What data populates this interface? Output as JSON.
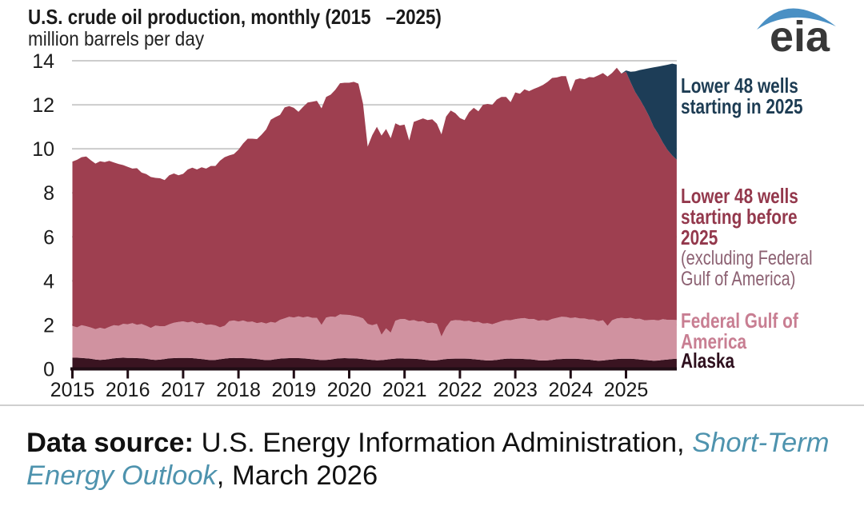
{
  "title": "U.S. crude oil production, monthly (2015   –2025)",
  "subtitle": "million barrels per day",
  "logo": {
    "text": "eia",
    "swoosh_color": "#4a90c4",
    "text_color": "#383838"
  },
  "annotations": {
    "lower48_new": {
      "line1": "Lower 48 wells",
      "line2": "starting in 2025",
      "color": "#1d3c53"
    },
    "lower48_before": {
      "line1": "Lower 48 wells",
      "line2": "starting before",
      "line3": "2025",
      "sub1": "(excluding Federal",
      "sub2": "Gulf of America)",
      "color": "#93384c",
      "sub_color": "#8c6172"
    },
    "gulf": {
      "line1": "Federal Gulf of",
      "line2": "America",
      "color": "#c87e92"
    },
    "alaska": {
      "label": "Alaska",
      "color": "#2e0f1d"
    }
  },
  "footer": {
    "line1": {
      "label": "Data source: ",
      "text": "U.S. Energy Information Administration, ",
      "link": "Short-Term"
    },
    "line2": {
      "link": "Energy Outlook",
      "suffix": ", March 2026"
    },
    "link_color": "#4e93ae"
  },
  "chart_data": {
    "type": "area-stacked",
    "title": "U.S. crude oil production, monthly (2015–2025)",
    "ylabel": "million barrels per day",
    "x_start": "2015-01",
    "x_end": "2025-12",
    "points_per_year": 12,
    "x_tick_years": [
      2015,
      2016,
      2017,
      2018,
      2019,
      2020,
      2021,
      2022,
      2023,
      2024,
      2025
    ],
    "ylim": [
      0,
      14
    ],
    "yticks": [
      0,
      2,
      4,
      6,
      8,
      10,
      12,
      14
    ],
    "grid_color": "#cccccc",
    "axis_color": "#200d15",
    "series": [
      {
        "name": "Alaska",
        "color": "#3a1421",
        "values": [
          0.51,
          0.51,
          0.5,
          0.48,
          0.46,
          0.43,
          0.41,
          0.42,
          0.45,
          0.48,
          0.5,
          0.51,
          0.5,
          0.5,
          0.49,
          0.48,
          0.46,
          0.43,
          0.41,
          0.42,
          0.45,
          0.48,
          0.49,
          0.5,
          0.5,
          0.5,
          0.49,
          0.47,
          0.45,
          0.42,
          0.4,
          0.41,
          0.44,
          0.47,
          0.49,
          0.5,
          0.49,
          0.49,
          0.48,
          0.47,
          0.45,
          0.42,
          0.4,
          0.41,
          0.44,
          0.47,
          0.48,
          0.49,
          0.49,
          0.49,
          0.48,
          0.46,
          0.44,
          0.42,
          0.4,
          0.41,
          0.43,
          0.46,
          0.48,
          0.49,
          0.48,
          0.48,
          0.47,
          0.45,
          0.43,
          0.41,
          0.39,
          0.4,
          0.42,
          0.45,
          0.47,
          0.48,
          0.47,
          0.47,
          0.46,
          0.45,
          0.43,
          0.4,
          0.38,
          0.39,
          0.42,
          0.45,
          0.46,
          0.47,
          0.47,
          0.47,
          0.46,
          0.44,
          0.42,
          0.4,
          0.38,
          0.39,
          0.41,
          0.44,
          0.46,
          0.47,
          0.46,
          0.46,
          0.45,
          0.44,
          0.42,
          0.39,
          0.38,
          0.39,
          0.41,
          0.44,
          0.45,
          0.46,
          0.46,
          0.46,
          0.45,
          0.43,
          0.42,
          0.39,
          0.37,
          0.38,
          0.41,
          0.43,
          0.45,
          0.46,
          0.46,
          0.46,
          0.45,
          0.43,
          0.41,
          0.39,
          0.37,
          0.38,
          0.41,
          0.43,
          0.45,
          0.46
        ]
      },
      {
        "name": "Federal Gulf of America",
        "color": "#d092a0",
        "values": [
          1.44,
          1.38,
          1.49,
          1.46,
          1.42,
          1.38,
          1.46,
          1.4,
          1.46,
          1.51,
          1.46,
          1.54,
          1.53,
          1.58,
          1.52,
          1.56,
          1.5,
          1.43,
          1.56,
          1.52,
          1.49,
          1.55,
          1.61,
          1.63,
          1.66,
          1.61,
          1.66,
          1.6,
          1.65,
          1.58,
          1.62,
          1.57,
          1.45,
          1.49,
          1.68,
          1.7,
          1.66,
          1.71,
          1.65,
          1.68,
          1.63,
          1.7,
          1.66,
          1.72,
          1.66,
          1.76,
          1.82,
          1.88,
          1.84,
          1.9,
          1.86,
          1.92,
          1.88,
          1.9,
          1.6,
          1.92,
          1.95,
          1.9,
          2.0,
          1.97,
          1.97,
          1.93,
          1.9,
          1.85,
          1.62,
          1.58,
          1.66,
          1.15,
          1.42,
          1.2,
          1.72,
          1.78,
          1.8,
          1.72,
          1.76,
          1.7,
          1.74,
          1.68,
          1.72,
          1.65,
          1.05,
          1.45,
          1.72,
          1.75,
          1.74,
          1.7,
          1.73,
          1.68,
          1.72,
          1.66,
          1.7,
          1.64,
          1.69,
          1.73,
          1.76,
          1.74,
          1.8,
          1.83,
          1.86,
          1.82,
          1.85,
          1.8,
          1.84,
          1.8,
          1.86,
          1.88,
          1.92,
          1.9,
          1.85,
          1.88,
          1.84,
          1.86,
          1.82,
          1.85,
          1.8,
          1.83,
          1.55,
          1.78,
          1.84,
          1.86,
          1.84,
          1.86,
          1.82,
          1.85,
          1.8,
          1.83,
          1.86,
          1.82,
          1.85,
          1.8,
          1.78,
          1.76
        ]
      },
      {
        "name": "Lower 48 wells starting before 2025 (excluding Federal Gulf of America)",
        "color": "#9e3f50",
        "derived": "total minus Alaska, Federal Gulf of America, and Lower 48 wells starting in 2025"
      },
      {
        "name": "Lower 48 wells starting in 2025",
        "color": "#1d3d57",
        "values": [
          0,
          0,
          0,
          0,
          0,
          0,
          0,
          0,
          0,
          0,
          0,
          0,
          0,
          0,
          0,
          0,
          0,
          0,
          0,
          0,
          0,
          0,
          0,
          0,
          0,
          0,
          0,
          0,
          0,
          0,
          0,
          0,
          0,
          0,
          0,
          0,
          0,
          0,
          0,
          0,
          0,
          0,
          0,
          0,
          0,
          0,
          0,
          0,
          0,
          0,
          0,
          0,
          0,
          0,
          0,
          0,
          0,
          0,
          0,
          0,
          0,
          0,
          0,
          0,
          0,
          0,
          0,
          0,
          0,
          0,
          0,
          0,
          0,
          0,
          0,
          0,
          0,
          0,
          0,
          0,
          0,
          0,
          0,
          0,
          0,
          0,
          0,
          0,
          0,
          0,
          0,
          0,
          0,
          0,
          0,
          0,
          0,
          0,
          0,
          0,
          0,
          0,
          0,
          0,
          0,
          0,
          0,
          0,
          0,
          0,
          0,
          0,
          0,
          0,
          0,
          0,
          0,
          0,
          0,
          0,
          0.06,
          0.48,
          0.94,
          1.33,
          1.74,
          2.18,
          2.7,
          3.07,
          3.5,
          3.87,
          4.17,
          4.33
        ]
      }
    ],
    "total": [
      9.42,
      9.5,
      9.62,
      9.65,
      9.48,
      9.33,
      9.43,
      9.4,
      9.45,
      9.38,
      9.31,
      9.26,
      9.18,
      9.1,
      9.12,
      8.92,
      8.85,
      8.72,
      8.68,
      8.66,
      8.58,
      8.8,
      8.88,
      8.8,
      8.86,
      9.06,
      9.14,
      9.06,
      9.16,
      9.1,
      9.22,
      9.22,
      9.46,
      9.62,
      9.7,
      9.76,
      9.96,
      10.24,
      10.46,
      10.46,
      10.44,
      10.64,
      10.88,
      11.32,
      11.44,
      11.54,
      11.88,
      11.94,
      11.86,
      11.68,
      11.9,
      12.1,
      12.14,
      12.18,
      11.84,
      12.36,
      12.46,
      12.68,
      12.98,
      13.0,
      13.0,
      13.04,
      12.96,
      12.05,
      10.1,
      10.62,
      11.0,
      10.6,
      10.9,
      10.48,
      11.16,
      11.06,
      11.1,
      10.38,
      11.22,
      11.3,
      11.38,
      11.3,
      11.34,
      11.14,
      10.66,
      11.46,
      11.74,
      11.62,
      11.4,
      11.3,
      11.66,
      11.86,
      11.7,
      12.0,
      12.04,
      12.0,
      12.24,
      12.36,
      12.36,
      12.12,
      12.56,
      12.5,
      12.7,
      12.62,
      12.72,
      12.8,
      12.9,
      13.04,
      13.22,
      13.24,
      13.3,
      13.3,
      12.6,
      13.14,
      13.2,
      13.16,
      13.26,
      13.24,
      13.34,
      13.44,
      13.28,
      13.45,
      13.68,
      13.42,
      13.56,
      13.5,
      13.52,
      13.58,
      13.62,
      13.66,
      13.7,
      13.74,
      13.78,
      13.82,
      13.87,
      13.83
    ]
  }
}
